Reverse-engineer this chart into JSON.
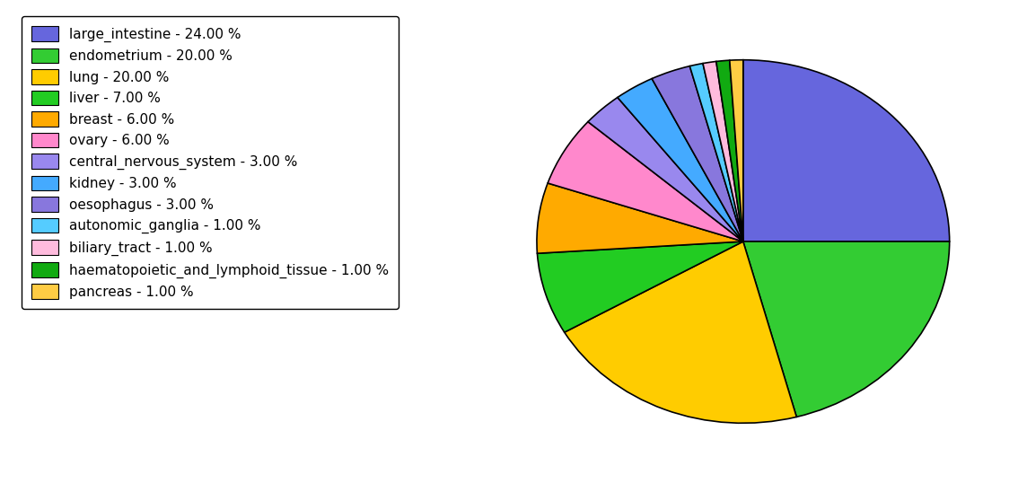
{
  "labels": [
    "large_intestine - 24.00 %",
    "endometrium - 20.00 %",
    "lung - 20.00 %",
    "liver - 7.00 %",
    "breast - 6.00 %",
    "ovary - 6.00 %",
    "central_nervous_system - 3.00 %",
    "kidney - 3.00 %",
    "oesophagus - 3.00 %",
    "autonomic_ganglia - 1.00 %",
    "biliary_tract - 1.00 %",
    "haematopoietic_and_lymphoid_tissue - 1.00 %",
    "pancreas - 1.00 %"
  ],
  "values": [
    24,
    20,
    20,
    7,
    6,
    6,
    3,
    3,
    3,
    1,
    1,
    1,
    1
  ],
  "colors": [
    "#6666dd",
    "#33cc33",
    "#ffcc00",
    "#22cc22",
    "#ffaa00",
    "#ff88cc",
    "#9988ee",
    "#44aaff",
    "#8877dd",
    "#55ccff",
    "#ffbbdd",
    "#11aa11",
    "#ffcc44"
  ],
  "background_color": "#ffffff",
  "figsize": [
    11.34,
    5.38
  ],
  "dpi": 100,
  "legend_fontsize": 11,
  "startangle": 90
}
